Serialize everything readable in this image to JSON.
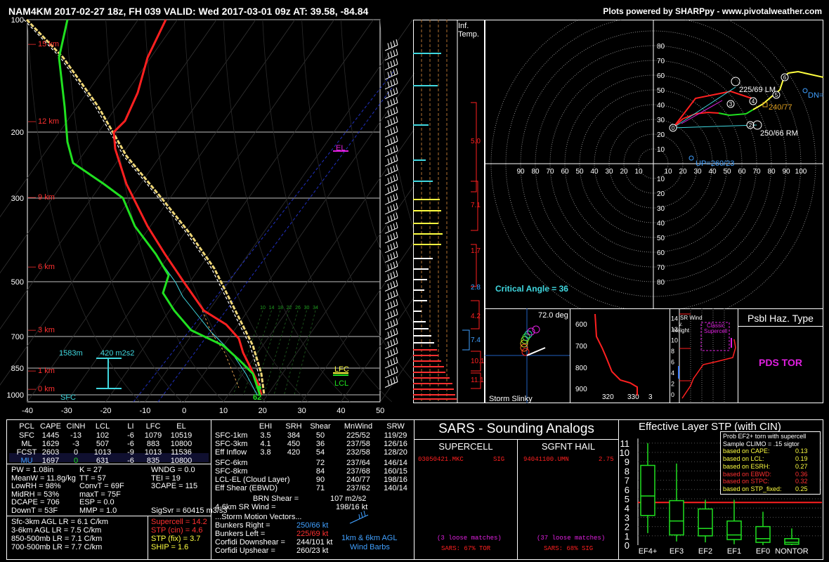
{
  "header": {
    "left": "NAM4KM 2017-02-27 18z, FH 039   VALID: Wed 2017-03-01 09z   AT: 39.58, -84.84",
    "right": "Plots powered by SHARPpy - www.pivotalweather.com"
  },
  "chart_data": [
    {
      "type": "line",
      "name": "skew-t",
      "pressure_ticks": [
        "100",
        "200",
        "300",
        "500",
        "700",
        "850",
        "1000"
      ],
      "temp_ticks": [
        "-40",
        "-30",
        "-20",
        "-10",
        "0",
        "10",
        "20",
        "30",
        "40",
        "50"
      ],
      "height_labels": [
        "15 km",
        "12 km",
        "9 km",
        "6 km",
        "3 km",
        "1 km",
        "0 km"
      ],
      "annotations": {
        "el": "EL",
        "lfc": "LFC",
        "lcl": "LCL",
        "sfc": "SFC",
        "sfc_temp": "62",
        "eff_base": "1583m",
        "eff_srh": "420 m2s2"
      },
      "w_labels": [
        "10",
        "14",
        "18",
        "22",
        "26",
        "30",
        "34"
      ],
      "colors": {
        "temp": "#ff2020",
        "dewpoint": "#20e020",
        "parcel": "#f0d878",
        "wetbulb": "#40d8e0"
      }
    },
    {
      "type": "line",
      "name": "hodograph",
      "rings_top": [
        "80",
        "70",
        "60",
        "50",
        "40",
        "30",
        "20",
        "10"
      ],
      "rings_bottom": [
        "10",
        "20",
        "30",
        "40",
        "50",
        "60",
        "70",
        "80"
      ],
      "x_ticks_left": [
        "90",
        "80",
        "70",
        "60",
        "50",
        "40",
        "30",
        "20",
        "10"
      ],
      "x_ticks_right": [
        "10",
        "20",
        "30",
        "40",
        "50",
        "60",
        "70",
        "80",
        "90",
        "100"
      ],
      "labels": {
        "lm": "225/69 LM",
        "rm": "250/66 RM",
        "mean": "240/77",
        "upshear": "UP=260/23",
        "downshear": "DN=",
        "critical": "Critical Angle = 36"
      },
      "knots": [
        "0",
        "2",
        "3",
        "4",
        "5",
        "6"
      ]
    },
    {
      "type": "bar",
      "name": "ef-stp",
      "title": "Effective Layer STP (with CIN)",
      "categories": [
        "EF4+",
        "EF3",
        "EF2",
        "EF1",
        "EF0",
        "NONTOR"
      ],
      "y_ticks": [
        "0",
        "1",
        "2",
        "3",
        "4",
        "5",
        "6",
        "7",
        "8",
        "9",
        "10",
        "11"
      ],
      "box_q1": [
        3.2,
        1.1,
        1.0,
        0.6,
        0.3,
        0.1
      ],
      "box_median": [
        5.3,
        2.6,
        1.8,
        1.1,
        0.7,
        0.3
      ],
      "box_q3": [
        8.6,
        4.8,
        3.9,
        2.6,
        2.0,
        0.7
      ],
      "whisker_low": [
        1.3,
        0.4,
        0.3,
        0.1,
        0.0,
        0.0
      ],
      "whisker_high": [
        11,
        8.8,
        4.9,
        4.9,
        3.6,
        1.8
      ],
      "value_line": 4.6,
      "legend_lines": [
        {
          "label": "Prob EF2+ torn with supercell",
          "value": ""
        },
        {
          "label": "Sample CLIMO = .15 sigtor",
          "value": ""
        },
        {
          "label": "based on CAPE:",
          "value": "0.13"
        },
        {
          "label": "based on LCL:",
          "value": "0.19"
        },
        {
          "label": "based on ESRH:",
          "value": "0.27"
        },
        {
          "label": "based on EBWD:",
          "value": "0.36"
        },
        {
          "label": "based on STPC:",
          "value": "0.32"
        },
        {
          "label": "based on STP_fixed:",
          "value": "0.25"
        }
      ]
    }
  ],
  "profile_strip": {
    "labels": [
      "Inf.",
      "Temp."
    ],
    "theta_labels": [
      "5.0",
      "7.1",
      "1.7",
      "2.8",
      "4.2",
      "7.4",
      "10.1",
      "11.1"
    ]
  },
  "slinky": {
    "title": "Storm Slinky",
    "deg": "72.0 deg"
  },
  "theta_panel": {
    "y_ticks": [
      "600",
      "700",
      "800",
      "900"
    ],
    "x_ticks": [
      "320",
      "330",
      "3"
    ]
  },
  "srwind_panel": {
    "title": "SR Wind",
    "sub": "v.",
    "height": "Height",
    "classic": "Classic",
    "supercell": "Supercell",
    "y_ticks": [
      "0",
      "2",
      "4",
      "6",
      "8",
      "10",
      "12",
      "14"
    ]
  },
  "hazard": {
    "title": "Psbl Haz. Type",
    "value": "PDS TOR"
  },
  "parcels": {
    "headers": [
      "PCL",
      "CAPE",
      "CINH",
      "LCL",
      "LI",
      "LFC",
      "EL"
    ],
    "rows": [
      [
        "SFC",
        "1445",
        "-13",
        "102",
        "-6",
        "1079",
        "10519"
      ],
      [
        "ML",
        "1629",
        "-3",
        "507",
        "-6",
        "883",
        "10800"
      ],
      [
        "FCST",
        "2603",
        "0",
        "1013",
        "-9",
        "1013",
        "11536"
      ],
      [
        "MU",
        "1697",
        "0",
        "631",
        "-6",
        "835",
        "10800"
      ]
    ]
  },
  "indices": [
    [
      "PW = 1.08in",
      "K = 27",
      "WNDG = 0.0"
    ],
    [
      "MeanW = 11.8g/kg",
      "TT = 57",
      "TEI = 19"
    ],
    [
      "LowRH = 98%",
      "ConvT = 69F",
      "3CAPE = 115"
    ],
    [
      "MidRH = 53%",
      "maxT = 75F",
      ""
    ],
    [
      "DCAPE = 706",
      "ESP = 0.0",
      ""
    ],
    [
      "DownT = 53F",
      "MMP = 1.0",
      "SigSvr = 60415 m3/s3"
    ]
  ],
  "lapse": [
    "Sfc-3km AGL LR = 6.1 C/km",
    "3-6km AGL LR = 7.5 C/km",
    "850-500mb LR = 7.1 C/km",
    "700-500mb LR = 7.7 C/km"
  ],
  "composite": [
    {
      "label": "Supercell = 14.2",
      "color": "#ff3030"
    },
    {
      "label": "STP (cin) = 4.6",
      "color": "#ff3030"
    },
    {
      "label": "STP (fix) = 3.7",
      "color": "#ffff40"
    },
    {
      "label": "SHIP = 1.6",
      "color": "#ffff40"
    }
  ],
  "kinematics": {
    "headers": [
      "EHI",
      "SRH",
      "Shear",
      "MnWind",
      "SRW"
    ],
    "rows": [
      [
        "SFC-1km",
        "3.5",
        "384",
        "50",
        "225/52",
        "119/29"
      ],
      [
        "SFC-3km",
        "4.1",
        "450",
        "36",
        "237/58",
        "126/16"
      ],
      [
        "Eff Inflow",
        "3.8",
        "420",
        "54",
        "232/58",
        "128/20"
      ],
      [
        "SFC-6km",
        "",
        "",
        "72",
        "237/64",
        "146/14"
      ],
      [
        "SFC-8km",
        "",
        "",
        "84",
        "237/68",
        "160/15"
      ],
      [
        "LCL-EL (Cloud Layer)",
        "",
        "",
        "90",
        "240/77",
        "198/16"
      ],
      [
        "Eff Shear (EBWD)",
        "",
        "",
        "71",
        "237/62",
        "140/14"
      ]
    ],
    "brn": [
      "BRN Shear =",
      "107 m2/s2"
    ],
    "sr_wind": [
      "4-6km SR Wind =",
      "198/16 kt"
    ],
    "motion_title": "...Storm Motion Vectors...",
    "motion": [
      {
        "label": "Bunkers Right =",
        "value": "250/66 kt",
        "color": "#40a0ff"
      },
      {
        "label": "Bunkers Left =",
        "value": "225/69 kt",
        "color": "#ff3030"
      },
      {
        "label": "Corfidi Downshear =",
        "value": "244/101 kt",
        "color": "#ffffff"
      },
      {
        "label": "Corfidi Upshear =",
        "value": "260/23 kt",
        "color": "#ffffff"
      }
    ],
    "barb_legend": [
      "1km & 6km AGL",
      "Wind Barbs"
    ]
  },
  "sars": {
    "title": "SARS - Sounding Analogs",
    "supercell_title": "SUPERCELL",
    "hail_title": "SGFNT HAIL",
    "supercell_match": "03050421.MKC",
    "supercell_type": "SIG",
    "hail_match": "94041100.UMN",
    "hail_size": "2.75",
    "supercell_loose": "(3 loose matches)",
    "hail_loose": "(37 loose matches)",
    "supercell_pct": "SARS: 67% TOR",
    "hail_pct": "SARS: 68% SIG"
  }
}
